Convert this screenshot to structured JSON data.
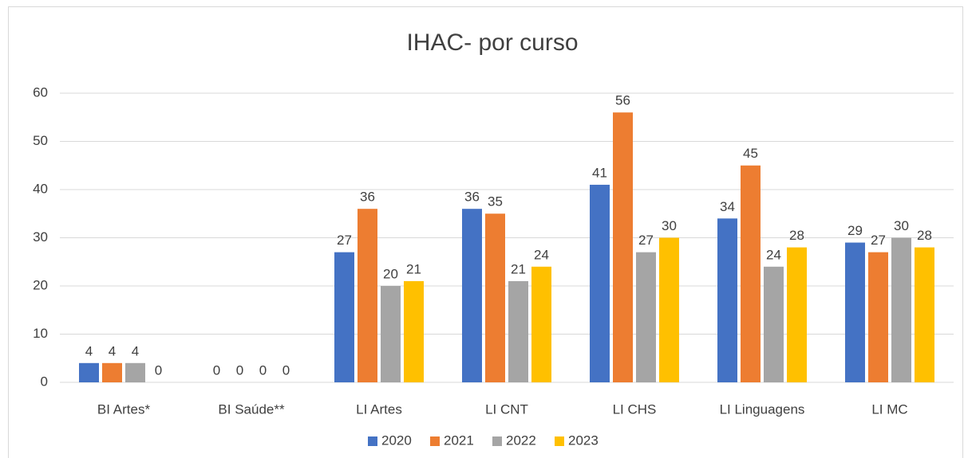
{
  "chart_data": {
    "type": "bar",
    "title": "IHAC- por curso",
    "categories": [
      "BI Artes*",
      "BI Saúde**",
      "LI Artes",
      "LI CNT",
      "LI CHS",
      "LI Linguagens",
      "LI MC"
    ],
    "series": [
      {
        "name": "2020",
        "color": "#4472c4",
        "values": [
          4,
          0,
          27,
          36,
          41,
          34,
          29
        ]
      },
      {
        "name": "2021",
        "color": "#ed7d31",
        "values": [
          4,
          0,
          36,
          35,
          56,
          45,
          27
        ]
      },
      {
        "name": "2022",
        "color": "#a5a5a5",
        "values": [
          4,
          0,
          20,
          21,
          27,
          24,
          30
        ]
      },
      {
        "name": "2023",
        "color": "#ffc000",
        "values": [
          0,
          0,
          21,
          24,
          30,
          28,
          28
        ]
      }
    ],
    "ylim": [
      0,
      60
    ],
    "yticks": [
      0,
      10,
      20,
      30,
      40,
      50,
      60
    ],
    "grid": true,
    "legend": "bottom"
  }
}
